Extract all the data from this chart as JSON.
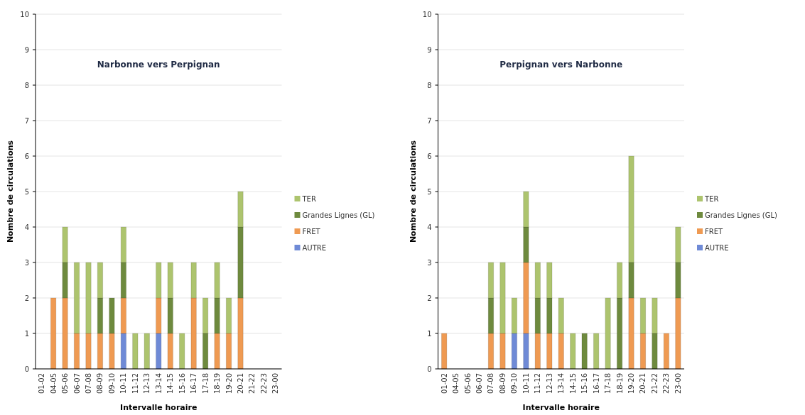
{
  "chart_data": [
    {
      "type": "bar",
      "title": "Narbonne vers Perpignan",
      "xlabel": "Intervalle horaire",
      "ylabel": "Nombre de circulations",
      "stacked": true,
      "legend": "right",
      "grid": "y",
      "categories": [
        "01-02",
        "04-05",
        "05-06",
        "06-07",
        "07-08",
        "08-09",
        "09-10",
        "10-11",
        "11-12",
        "12-13",
        "13-14",
        "14-15",
        "15-16",
        "16-17",
        "17-18",
        "18-19",
        "19-20",
        "20-21",
        "21-22",
        "22-23",
        "23-00"
      ],
      "ylim": [
        0,
        10
      ],
      "yticks": [
        0,
        1,
        2,
        3,
        4,
        5,
        6,
        7,
        8,
        9,
        10
      ],
      "series": [
        {
          "name": "AUTRE",
          "color": "#6f8ad6",
          "values": [
            0,
            0,
            0,
            0,
            0,
            0,
            0,
            1,
            0,
            0,
            1,
            0,
            0,
            0,
            0,
            0,
            0,
            0,
            0,
            0,
            0
          ]
        },
        {
          "name": "FRET",
          "color": "#ef9a52",
          "values": [
            0,
            2,
            2,
            1,
            1,
            1,
            1,
            1,
            0,
            0,
            1,
            1,
            0,
            2,
            0,
            1,
            1,
            2,
            0,
            0,
            0
          ]
        },
        {
          "name": "Grandes Lignes (GL)",
          "color": "#6e8a3e",
          "values": [
            0,
            0,
            1,
            0,
            0,
            1,
            1,
            1,
            0,
            0,
            0,
            1,
            0,
            0,
            1,
            1,
            0,
            2,
            0,
            0,
            0
          ]
        },
        {
          "name": "TER",
          "color": "#adc46e",
          "values": [
            0,
            0,
            1,
            2,
            2,
            1,
            0,
            1,
            1,
            1,
            1,
            1,
            1,
            1,
            1,
            1,
            1,
            1,
            0,
            0,
            0
          ]
        }
      ]
    },
    {
      "type": "bar",
      "title": "Perpignan vers Narbonne",
      "xlabel": "Intervalle horaire",
      "ylabel": "Nombre de circulations",
      "stacked": true,
      "legend": "right",
      "grid": "y",
      "categories": [
        "01-02",
        "04-05",
        "05-06",
        "06-07",
        "07-08",
        "08-09",
        "09-10",
        "10-11",
        "11-12",
        "12-13",
        "13-14",
        "14-15",
        "15-16",
        "16-17",
        "17-18",
        "18-19",
        "19-20",
        "20-21",
        "21-22",
        "22-23",
        "23-00"
      ],
      "ylim": [
        0,
        10
      ],
      "yticks": [
        0,
        1,
        2,
        3,
        4,
        5,
        6,
        7,
        8,
        9,
        10
      ],
      "series": [
        {
          "name": "AUTRE",
          "color": "#6f8ad6",
          "values": [
            0,
            0,
            0,
            0,
            0,
            0,
            1,
            1,
            0,
            0,
            0,
            0,
            0,
            0,
            0,
            0,
            0,
            0,
            0,
            0,
            0
          ]
        },
        {
          "name": "FRET",
          "color": "#ef9a52",
          "values": [
            1,
            0,
            0,
            0,
            1,
            1,
            0,
            2,
            1,
            1,
            1,
            0,
            0,
            0,
            0,
            0,
            2,
            1,
            0,
            1,
            2
          ]
        },
        {
          "name": "Grandes Lignes (GL)",
          "color": "#6e8a3e",
          "values": [
            0,
            0,
            0,
            0,
            1,
            0,
            0,
            1,
            1,
            1,
            0,
            0,
            1,
            0,
            0,
            2,
            1,
            0,
            1,
            0,
            1
          ]
        },
        {
          "name": "TER",
          "color": "#adc46e",
          "values": [
            0,
            0,
            0,
            0,
            1,
            2,
            1,
            1,
            1,
            1,
            1,
            1,
            0,
            1,
            2,
            1,
            3,
            1,
            1,
            0,
            1
          ]
        }
      ]
    }
  ]
}
